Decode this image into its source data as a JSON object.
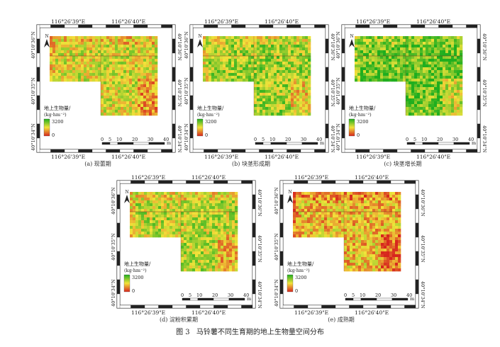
{
  "figure": {
    "number": "图 3",
    "title": "马铃薯不同生育期的地上生物量空间分布"
  },
  "labels": {
    "lon_left": "116°26'39\"E",
    "lon_right": "116°26'40\"E",
    "lat_top": "40°10'36\"N",
    "lat_mid": "40°10'35\"N",
    "lat_bottom": "40°10'34\"N",
    "north": "N",
    "legend_title_line1": "地上生物量/",
    "legend_title_line2": "(kg·hm⁻²)",
    "legend_max": "3200",
    "legend_min": "0",
    "scale_ticks": [
      "0",
      "5",
      "10",
      "20",
      "30",
      "40"
    ],
    "scale_unit": "m"
  },
  "colors": {
    "ramp_high": "#1fae1f",
    "ramp_mid": "#f2e33a",
    "ramp_low": "#d7261e"
  },
  "panels": [
    {
      "caption": "(a) 现蕾期",
      "tone": 0.55
    },
    {
      "caption": "(b) 块茎形成期",
      "tone": 0.68
    },
    {
      "caption": "(c) 块茎增长期",
      "tone": 0.82
    },
    {
      "caption": "(d) 淀粉积累期",
      "tone": 0.62
    },
    {
      "caption": "(e) 成熟期",
      "tone": 0.4
    }
  ]
}
